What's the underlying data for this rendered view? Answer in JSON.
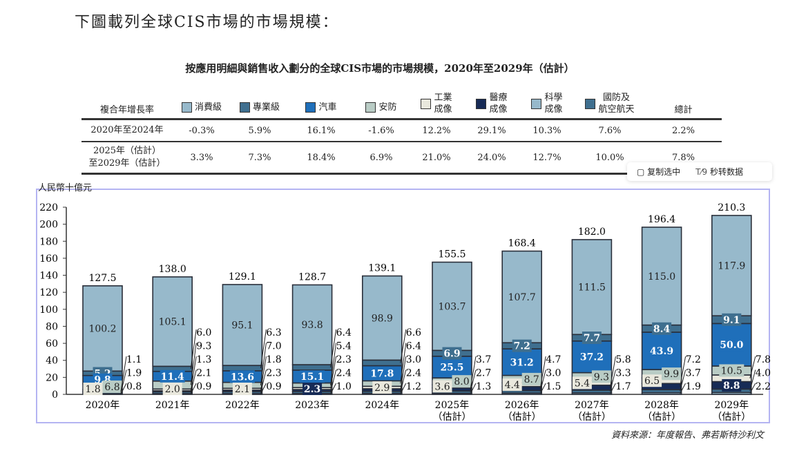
{
  "intro": "下圖載列全球CIS市場的市場規模：",
  "subtitle": "按應用明細與銷售收入劃分的全球CIS市場的市場規模，2020年至2029年（估計）",
  "table": {
    "row_header": "複合年增長率",
    "total_header": "總計",
    "legend": [
      {
        "label": "消費級",
        "color": "#97b9cb"
      },
      {
        "label": "專業級",
        "color": "#3f6f8f"
      },
      {
        "label": "汽車",
        "color": "#1f6fba"
      },
      {
        "label": "安防",
        "color": "#b9ccc5"
      },
      {
        "label": "工業\n成像",
        "color": "#e9e8dd"
      },
      {
        "label": "醫療\n成像",
        "color": "#172b56"
      },
      {
        "label": "科學\n成像",
        "color": "#97b9cb"
      },
      {
        "label": "國防及\n航空航天",
        "color": "#3f6f8f"
      }
    ],
    "rows": [
      {
        "period": "2020年至2024年",
        "values": [
          "-0.3%",
          "5.9%",
          "16.1%",
          "-1.6%",
          "12.2%",
          "29.1%",
          "10.3%",
          "7.6%",
          "2.2%"
        ]
      },
      {
        "period": "2025年（估計）\n至2029年（估計）",
        "values": [
          "3.3%",
          "7.3%",
          "18.4%",
          "6.9%",
          "21.0%",
          "24.0%",
          "12.7%",
          "10.0%",
          "7.8%"
        ]
      }
    ]
  },
  "popup": {
    "copy": "复制选中",
    "convert": "秒转数据"
  },
  "chart_data": {
    "type": "bar",
    "stacked": true,
    "ylabel": "人民幣十億元",
    "ylim": [
      0,
      220
    ],
    "yticks": [
      "0",
      "20",
      "40",
      "60",
      "80",
      "100",
      "120",
      "140",
      "160",
      "180",
      "200",
      "220"
    ],
    "categories": [
      "2020年",
      "2021年",
      "2022年",
      "2023年",
      "2024年",
      "2025年\n（估計）",
      "2026年\n（估計）",
      "2027年\n（估計）",
      "2028年\n（估計）",
      "2029年\n（估計）"
    ],
    "totals": [
      "127.5",
      "138.0",
      "129.1",
      "128.7",
      "139.1",
      "155.5",
      "168.4",
      "182.0",
      "196.4",
      "210.3"
    ],
    "series": [
      {
        "name": "消費級",
        "color": "#97b9cb",
        "values": [
          100.2,
          105.1,
          95.1,
          93.8,
          98.9,
          103.7,
          107.7,
          111.5,
          115.0,
          117.9
        ]
      },
      {
        "name": "專業級",
        "color": "#3f6f8f",
        "values": [
          5.2,
          6.0,
          6.3,
          6.4,
          6.6,
          6.9,
          7.2,
          7.7,
          8.4,
          9.1
        ]
      },
      {
        "name": "汽車",
        "color": "#1f6fba",
        "values": [
          9.8,
          11.4,
          13.6,
          15.1,
          17.8,
          25.5,
          31.2,
          37.2,
          43.9,
          50.0
        ]
      },
      {
        "name": "安防",
        "color": "#b9ccc5",
        "values": [
          6.8,
          9.3,
          7.0,
          5.4,
          6.4,
          8.0,
          8.7,
          9.3,
          9.9,
          10.5
        ]
      },
      {
        "name": "工業成像",
        "color": "#e9e8dd",
        "values": [
          1.8,
          2.0,
          2.1,
          2.3,
          2.9,
          3.6,
          4.4,
          5.4,
          6.5,
          7.8
        ]
      },
      {
        "name": "醫療成像",
        "color": "#172b56",
        "values": [
          1.1,
          1.3,
          1.8,
          2.3,
          3.0,
          3.7,
          4.7,
          5.8,
          7.2,
          8.8
        ]
      },
      {
        "name": "科學成像",
        "color": "#97b9cb",
        "values": [
          0.8,
          0.9,
          0.9,
          1.0,
          1.2,
          1.3,
          1.5,
          1.7,
          1.9,
          2.2
        ]
      },
      {
        "name": "國防及航空航天",
        "color": "#3f6f8f",
        "values": [
          1.9,
          2.1,
          2.3,
          2.4,
          2.4,
          2.7,
          3.0,
          3.3,
          3.7,
          4.0
        ]
      }
    ]
  },
  "source": "資料來源：年度報告、弗若斯特沙利文"
}
